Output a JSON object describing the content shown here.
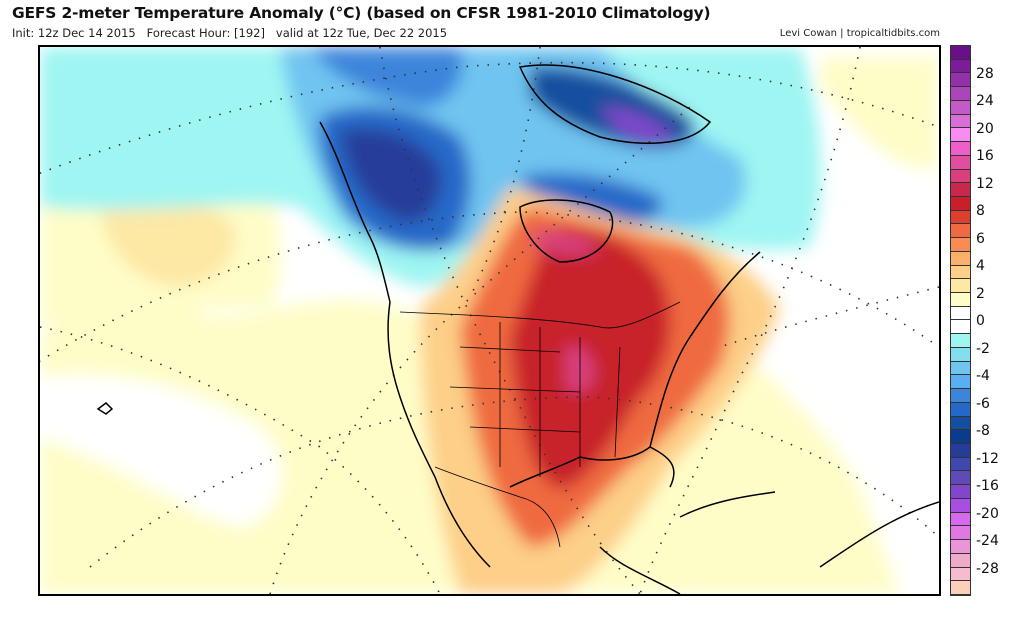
{
  "header": {
    "title": "GEFS 2-meter Temperature Anomaly (°C) (based on CFSR 1981-2010 Climatology)",
    "subtitle": "Init: 12z Dec 14 2015   Forecast Hour: [192]   valid at 12z Tue, Dec 22 2015",
    "credit": "Levi Cowan | tropicaltidbits.com"
  },
  "map": {
    "region": "North America",
    "variable": "2-meter temperature anomaly",
    "units": "°C",
    "features": [
      "coastlines",
      "country borders",
      "US state borders",
      "lat/lon dotted graticule"
    ],
    "highlights": [
      {
        "area": "Central / Eastern US, Texas, Midwest",
        "anomaly": "+8 to +12"
      },
      {
        "area": "Hudson Bay region",
        "anomaly": "+10 to +14"
      },
      {
        "area": "Alaska / Yukon",
        "anomaly": "-8 to -14"
      },
      {
        "area": "Greenland",
        "anomaly": "-10 to -18"
      },
      {
        "area": "NE Pacific / Eastern Atlantic",
        "anomaly": "0 to +2"
      }
    ]
  },
  "colorbar": {
    "labels": [
      "28",
      "24",
      "20",
      "16",
      "12",
      "8",
      "6",
      "4",
      "2",
      "0",
      "-2",
      "-4",
      "-6",
      "-8",
      "-12",
      "-16",
      "-20",
      "-24",
      "-28"
    ],
    "colors": [
      "#6a0f8a",
      "#7b1c99",
      "#9331a8",
      "#ab45ba",
      "#c459c9",
      "#d86ed6",
      "#f98cf2",
      "#ef5fc9",
      "#e24e9f",
      "#d83f7c",
      "#c9284d",
      "#c8202a",
      "#de3e2d",
      "#ef6a40",
      "#f98c55",
      "#fdb06c",
      "#fdcf88",
      "#fde8a4",
      "#fefdc8",
      "#ffffff",
      "#ffffff",
      "#9ff5f2",
      "#84def0",
      "#6fc4f0",
      "#5aaef1",
      "#3c85db",
      "#2569c8",
      "#12509f",
      "#0b3b8c",
      "#263c99",
      "#3f48ad",
      "#5f4ab8",
      "#8146cc",
      "#a84ee1",
      "#d66aef",
      "#e077e3",
      "#e995d8",
      "#f0aac9",
      "#f6bccd",
      "#fccfba"
    ]
  }
}
